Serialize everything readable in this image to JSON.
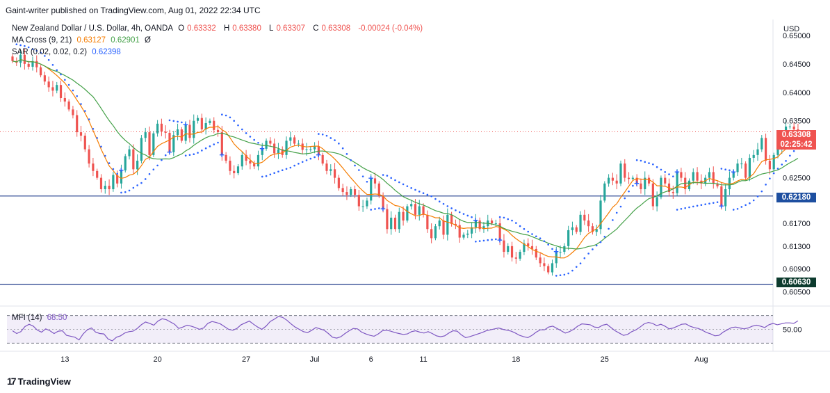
{
  "header": {
    "publisher_line": "Gaint-writer published on TradingView.com, Aug 01, 2022 22:34 UTC"
  },
  "legend": {
    "symbol": "New Zealand Dollar / U.S. Dollar, 4h, OANDA",
    "open_label": "O",
    "open": "0.63332",
    "high_label": "H",
    "high": "0.63380",
    "low_label": "L",
    "low": "0.63307",
    "close_label": "C",
    "close": "0.63308",
    "change": "-0.00024 (-0.04%)",
    "ma_label": "MA Cross (9, 21)",
    "ma_fast": "0.63127",
    "ma_slow": "0.62901",
    "ma_extra": "Ø",
    "sar_label": "SAR (0.02, 0.02, 0.2)",
    "sar_value": "0.62398",
    "mfi_label": "MFI (14)",
    "mfi_value": "68.50"
  },
  "footer": {
    "brand": "TradingView",
    "logo_glyph": "17"
  },
  "colors": {
    "up": "#26a69a",
    "down": "#ef5350",
    "ma_fast": "#f57c00",
    "ma_slow": "#43a047",
    "sar": "#2962ff",
    "mfi": "#7e57c2",
    "level_line": "#1e3a8a",
    "current_price_bg": "#ef5350",
    "support_tag_bg": "#1e4fa0",
    "low_tag_bg": "#0d3b2e"
  },
  "chart_data": [
    {
      "type": "candlestick",
      "title": "New Zealand Dollar / U.S. Dollar, 4h, OANDA",
      "ylabel": "USD",
      "y_ticks": [
        "0.65000",
        "0.64500",
        "0.64000",
        "0.63500",
        "0.62500",
        "0.61700",
        "0.61300",
        "0.60900",
        "0.60500"
      ],
      "ylim": [
        0.6037,
        0.6528
      ],
      "x_ticks": [
        "13",
        "20",
        "27",
        "Jul",
        "6",
        "11",
        "18",
        "25",
        "Aug"
      ],
      "xlim": [
        0,
        185
      ],
      "x_tick_positions": [
        13,
        36,
        58,
        75,
        89,
        102,
        125,
        147,
        171
      ],
      "price_labels": {
        "current": "0.63308",
        "countdown": "02:25:42",
        "support": "0.62180",
        "low": "0.60630"
      },
      "horizontal_lines": [
        {
          "value": 0.6218,
          "label": "0.62180"
        },
        {
          "value": 0.6063,
          "label": "0.60630"
        }
      ],
      "current_price": 0.63308,
      "close_series": [
        0.6455,
        0.6452,
        0.6466,
        0.645,
        0.6445,
        0.6455,
        0.6444,
        0.643,
        0.6419,
        0.6409,
        0.6403,
        0.6413,
        0.639,
        0.6384,
        0.637,
        0.636,
        0.633,
        0.6324,
        0.63,
        0.6275,
        0.6262,
        0.625,
        0.623,
        0.6236,
        0.623,
        0.6255,
        0.624,
        0.6263,
        0.6288,
        0.63,
        0.6265,
        0.628,
        0.632,
        0.633,
        0.629,
        0.6328,
        0.6345,
        0.6331,
        0.6329,
        0.6295,
        0.6325,
        0.6335,
        0.6315,
        0.6343,
        0.632,
        0.635,
        0.6355,
        0.6335,
        0.6346,
        0.635,
        0.6334,
        0.633,
        0.629,
        0.628,
        0.6262,
        0.6258,
        0.627,
        0.629,
        0.628,
        0.6275,
        0.627,
        0.629,
        0.6301,
        0.6315,
        0.631,
        0.6293,
        0.63,
        0.629,
        0.6315,
        0.6321,
        0.631,
        0.631,
        0.6299,
        0.63,
        0.63,
        0.6305,
        0.629,
        0.6275,
        0.6262,
        0.6265,
        0.625,
        0.6232,
        0.6225,
        0.622,
        0.623,
        0.622,
        0.62,
        0.62,
        0.621,
        0.6249,
        0.624,
        0.6218,
        0.6195,
        0.616,
        0.618,
        0.616,
        0.619,
        0.6175,
        0.62,
        0.6204,
        0.6185,
        0.62,
        0.6185,
        0.616,
        0.6144,
        0.6165,
        0.6175,
        0.615,
        0.6185,
        0.6169,
        0.6167,
        0.6145,
        0.615,
        0.6152,
        0.6163,
        0.6175,
        0.616,
        0.6165,
        0.6175,
        0.617,
        0.617,
        0.614,
        0.612,
        0.613,
        0.611,
        0.6108,
        0.612,
        0.6135,
        0.613,
        0.6125,
        0.611,
        0.61,
        0.6095,
        0.6084,
        0.61,
        0.612,
        0.612,
        0.613,
        0.6158,
        0.6163,
        0.6155,
        0.6185,
        0.6175,
        0.6165,
        0.6155,
        0.616,
        0.621,
        0.624,
        0.625,
        0.6245,
        0.624,
        0.6275,
        0.625,
        0.6248,
        0.625,
        0.624,
        0.623,
        0.625,
        0.624,
        0.62,
        0.6216,
        0.625,
        0.624,
        0.6225,
        0.6223,
        0.626,
        0.625,
        0.623,
        0.6245,
        0.626,
        0.6245,
        0.624,
        0.625,
        0.626,
        0.624,
        0.6235,
        0.62,
        0.623,
        0.625,
        0.626,
        0.6275,
        0.6275,
        0.625,
        0.6285,
        0.629,
        0.63,
        0.632,
        0.628,
        0.6265,
        0.629,
        0.63,
        0.632,
        0.634,
        0.634,
        0.6335,
        0.63308
      ]
    },
    {
      "type": "line",
      "title": "MFI (14)",
      "ylabel": "",
      "y_ticks": [
        "50.00"
      ],
      "ylim": [
        10,
        90
      ],
      "band": [
        20,
        80
      ],
      "mid": 50,
      "values": [
        47,
        41,
        45,
        56,
        61,
        57,
        48,
        44,
        51,
        47,
        41,
        46,
        47,
        37,
        35,
        33,
        27,
        40,
        49,
        53,
        44,
        41,
        40,
        29,
        25,
        33,
        36,
        42,
        45,
        46,
        52,
        60,
        66,
        63,
        59,
        68,
        73,
        71,
        66,
        61,
        52,
        55,
        59,
        57,
        54,
        50,
        53,
        63,
        67,
        65,
        62,
        56,
        50,
        48,
        52,
        60,
        64,
        68,
        61,
        55,
        50,
        57,
        67,
        72,
        78,
        76,
        70,
        62,
        55,
        50,
        45,
        43,
        48,
        54,
        51,
        48,
        41,
        33,
        31,
        34,
        41,
        47,
        52,
        51,
        44,
        40,
        37,
        35,
        40,
        47,
        48,
        46,
        43,
        41,
        39,
        40,
        45,
        47,
        44,
        42,
        45,
        41,
        36,
        34,
        36,
        42,
        47,
        46,
        38,
        32,
        34,
        37,
        40,
        43,
        47,
        49,
        51,
        53,
        50,
        48,
        46,
        42,
        37,
        34,
        32,
        37,
        44,
        49,
        49,
        55,
        57,
        52,
        47,
        42,
        45,
        50,
        57,
        62,
        61,
        60,
        55,
        54,
        59,
        61,
        54,
        47,
        42,
        37,
        39,
        45,
        49,
        55,
        62,
        65,
        63,
        58,
        61,
        57,
        51,
        53,
        57,
        61,
        62,
        57,
        54,
        52,
        48,
        43,
        40,
        36,
        37,
        44,
        49,
        54,
        55,
        53,
        51,
        53,
        57,
        59,
        57,
        54,
        60,
        63,
        60,
        62,
        64,
        64,
        63,
        68.5
      ]
    }
  ]
}
